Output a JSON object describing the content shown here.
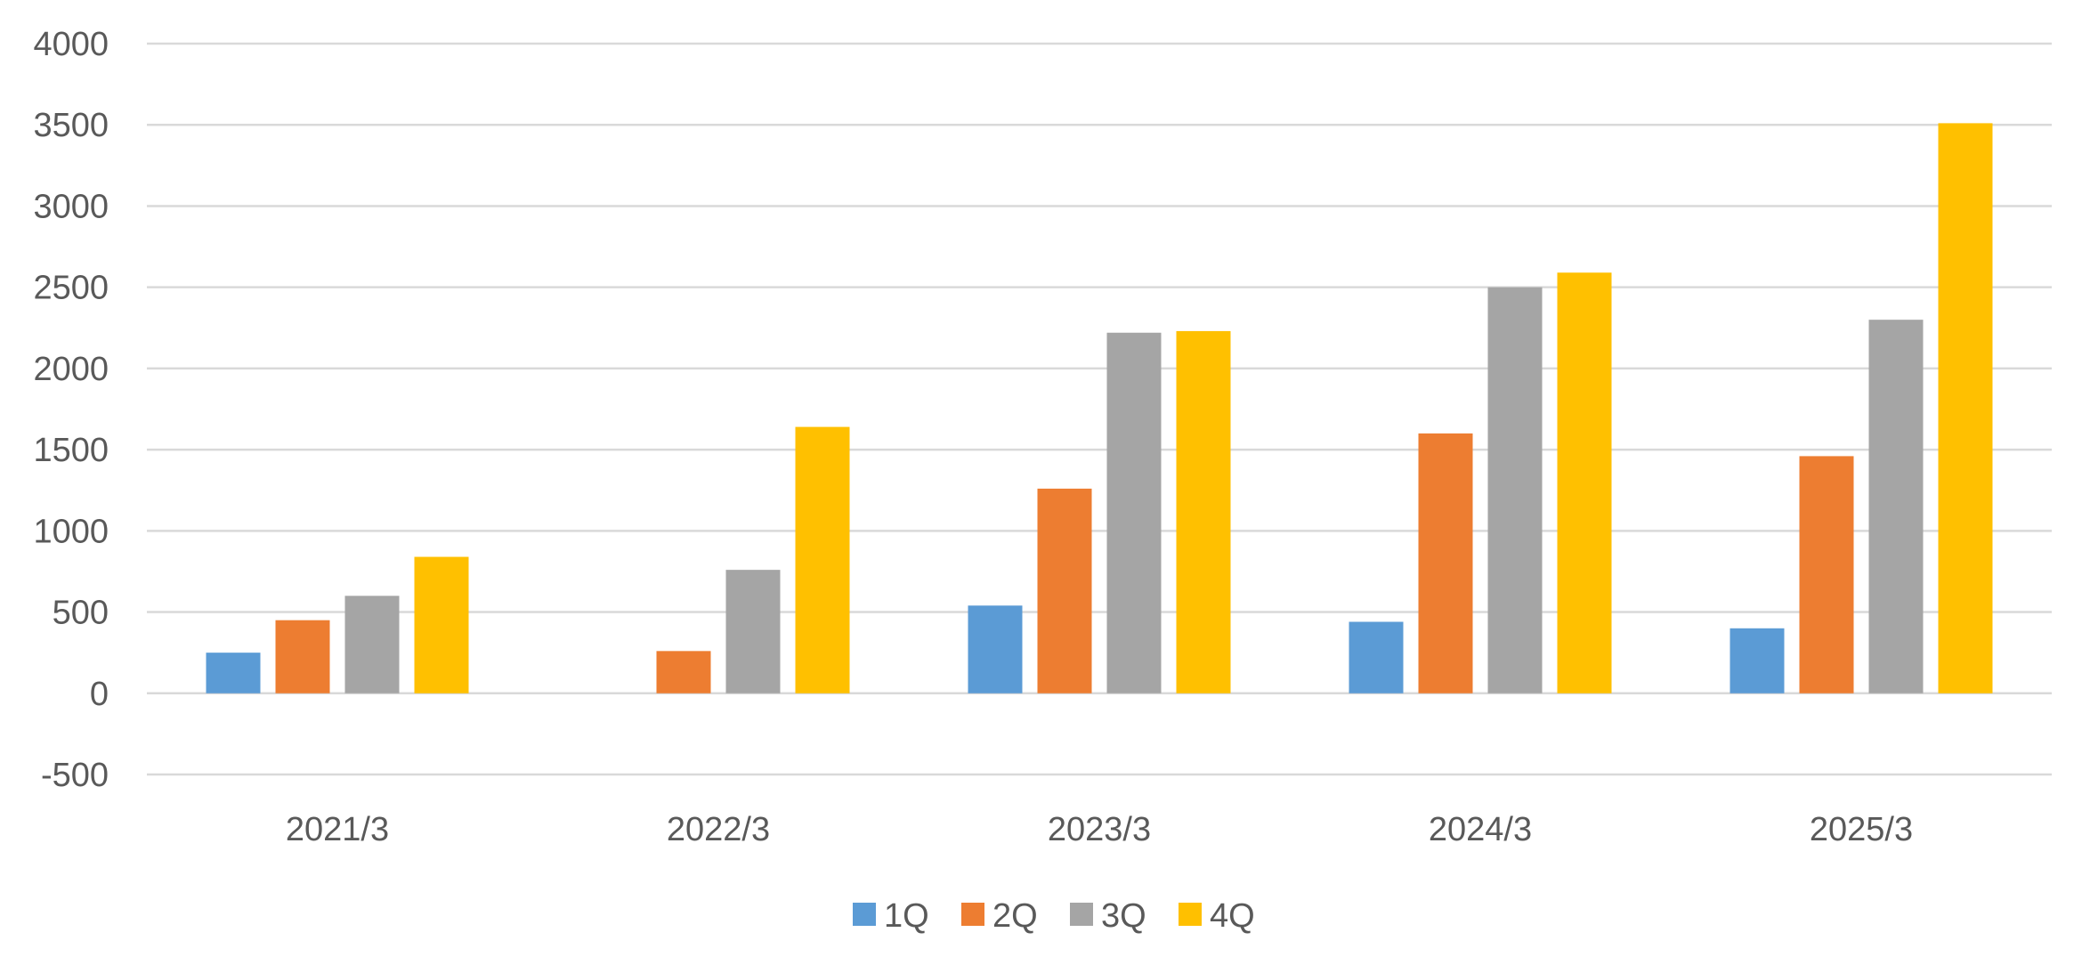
{
  "chart_data": {
    "type": "bar",
    "title": "",
    "xlabel": "",
    "ylabel": "",
    "ylim": [
      -500,
      4000
    ],
    "yticks": [
      -500,
      0,
      500,
      1000,
      1500,
      2000,
      2500,
      3000,
      3500,
      4000
    ],
    "grid": true,
    "legend_position": "bottom",
    "categories": [
      "2021/3",
      "2022/3",
      "2023/3",
      "2024/3",
      "2025/3"
    ],
    "series": [
      {
        "name": "1Q",
        "color": "#5b9bd5",
        "values": [
          250,
          0,
          540,
          440,
          400
        ]
      },
      {
        "name": "2Q",
        "color": "#ed7d31",
        "values": [
          450,
          260,
          1260,
          1600,
          1460
        ]
      },
      {
        "name": "3Q",
        "color": "#a5a5a5",
        "values": [
          600,
          760,
          2220,
          2500,
          2300
        ]
      },
      {
        "name": "4Q",
        "color": "#ffc000",
        "values": [
          840,
          1640,
          2230,
          2590,
          3510
        ]
      }
    ]
  }
}
